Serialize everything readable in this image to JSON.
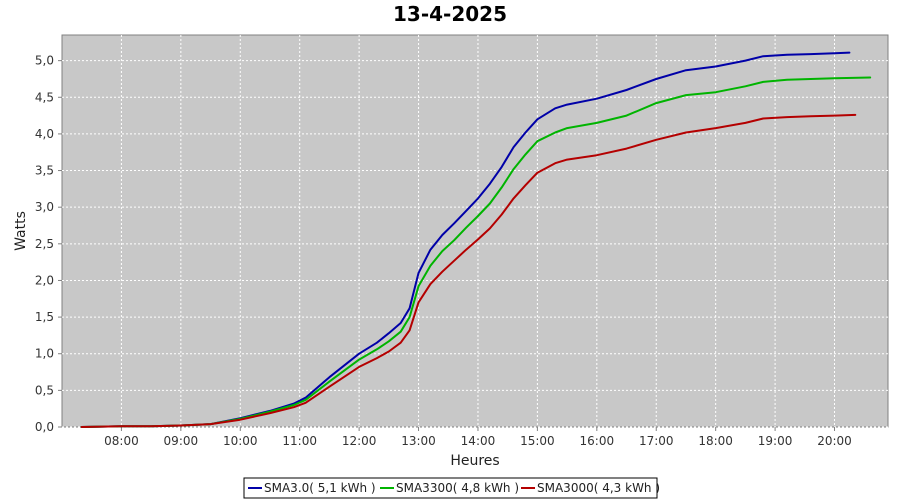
{
  "chart_data": {
    "type": "line",
    "title": "13-4-2025",
    "xlabel": "Heures",
    "ylabel": "Watts",
    "xlim": [
      7.0,
      20.9
    ],
    "ylim": [
      0,
      5.35
    ],
    "grid": true,
    "x_ticks": [
      {
        "value": 8,
        "label": "08:00"
      },
      {
        "value": 9,
        "label": "09:00"
      },
      {
        "value": 10,
        "label": "10:00"
      },
      {
        "value": 11,
        "label": "11:00"
      },
      {
        "value": 12,
        "label": "12:00"
      },
      {
        "value": 13,
        "label": "13:00"
      },
      {
        "value": 14,
        "label": "14:00"
      },
      {
        "value": 15,
        "label": "15:00"
      },
      {
        "value": 16,
        "label": "16:00"
      },
      {
        "value": 17,
        "label": "17:00"
      },
      {
        "value": 18,
        "label": "18:00"
      },
      {
        "value": 19,
        "label": "19:00"
      },
      {
        "value": 20,
        "label": "20:00"
      }
    ],
    "y_ticks": [
      {
        "value": 0.0,
        "label": "0,0"
      },
      {
        "value": 0.5,
        "label": "0,5"
      },
      {
        "value": 1.0,
        "label": "1,0"
      },
      {
        "value": 1.5,
        "label": "1,5"
      },
      {
        "value": 2.0,
        "label": "2,0"
      },
      {
        "value": 2.5,
        "label": "2,5"
      },
      {
        "value": 3.0,
        "label": "3,0"
      },
      {
        "value": 3.5,
        "label": "3,5"
      },
      {
        "value": 4.0,
        "label": "4,0"
      },
      {
        "value": 4.5,
        "label": "4,5"
      },
      {
        "value": 5.0,
        "label": "5,0"
      }
    ],
    "legend_position": "bottom-center",
    "series": [
      {
        "name": "SMA3.0( 5,1 kWh )",
        "color": "#0000a8",
        "x": [
          7.33,
          8.0,
          8.5,
          9.0,
          9.5,
          10.0,
          10.5,
          10.9,
          11.1,
          11.5,
          12.0,
          12.3,
          12.5,
          12.7,
          12.85,
          13.0,
          13.2,
          13.4,
          13.6,
          13.8,
          14.0,
          14.2,
          14.4,
          14.6,
          14.8,
          15.0,
          15.3,
          15.5,
          16.0,
          16.5,
          17.0,
          17.5,
          18.0,
          18.5,
          18.8,
          19.2,
          19.6,
          20.0,
          20.25
        ],
        "y": [
          0.0,
          0.01,
          0.01,
          0.02,
          0.04,
          0.12,
          0.22,
          0.32,
          0.4,
          0.68,
          1.0,
          1.15,
          1.28,
          1.42,
          1.62,
          2.1,
          2.42,
          2.62,
          2.78,
          2.95,
          3.12,
          3.32,
          3.55,
          3.82,
          4.02,
          4.2,
          4.35,
          4.4,
          4.48,
          4.6,
          4.75,
          4.87,
          4.92,
          5.0,
          5.06,
          5.08,
          5.09,
          5.1,
          5.11
        ]
      },
      {
        "name": "SMA3300( 4,8 kWh )",
        "color": "#00b400",
        "x": [
          7.33,
          8.0,
          8.5,
          9.0,
          9.5,
          10.0,
          10.5,
          10.9,
          11.1,
          11.5,
          12.0,
          12.3,
          12.5,
          12.7,
          12.85,
          13.0,
          13.2,
          13.4,
          13.6,
          13.8,
          14.0,
          14.2,
          14.4,
          14.6,
          14.8,
          15.0,
          15.3,
          15.5,
          16.0,
          16.5,
          17.0,
          17.5,
          18.0,
          18.5,
          18.8,
          19.2,
          19.6,
          20.0,
          20.6
        ],
        "y": [
          0.0,
          0.01,
          0.01,
          0.02,
          0.04,
          0.11,
          0.21,
          0.3,
          0.37,
          0.62,
          0.92,
          1.06,
          1.17,
          1.3,
          1.5,
          1.92,
          2.2,
          2.4,
          2.55,
          2.72,
          2.88,
          3.05,
          3.27,
          3.52,
          3.72,
          3.9,
          4.02,
          4.08,
          4.15,
          4.25,
          4.42,
          4.53,
          4.57,
          4.65,
          4.71,
          4.74,
          4.75,
          4.76,
          4.77
        ]
      },
      {
        "name": "SMA3000( 4,3 kWh )",
        "color": "#b40000",
        "x": [
          7.33,
          8.0,
          8.5,
          9.0,
          9.5,
          10.0,
          10.5,
          10.9,
          11.1,
          11.5,
          12.0,
          12.3,
          12.5,
          12.7,
          12.85,
          13.0,
          13.2,
          13.4,
          13.6,
          13.8,
          14.0,
          14.2,
          14.4,
          14.6,
          14.8,
          15.0,
          15.3,
          15.5,
          16.0,
          16.5,
          17.0,
          17.5,
          18.0,
          18.5,
          18.8,
          19.2,
          19.6,
          20.0,
          20.35
        ],
        "y": [
          0.0,
          0.01,
          0.01,
          0.02,
          0.04,
          0.1,
          0.19,
          0.27,
          0.33,
          0.55,
          0.82,
          0.94,
          1.03,
          1.15,
          1.32,
          1.7,
          1.95,
          2.12,
          2.27,
          2.42,
          2.56,
          2.71,
          2.9,
          3.12,
          3.3,
          3.47,
          3.6,
          3.65,
          3.71,
          3.8,
          3.92,
          4.02,
          4.08,
          4.15,
          4.21,
          4.23,
          4.24,
          4.25,
          4.26
        ]
      }
    ]
  }
}
